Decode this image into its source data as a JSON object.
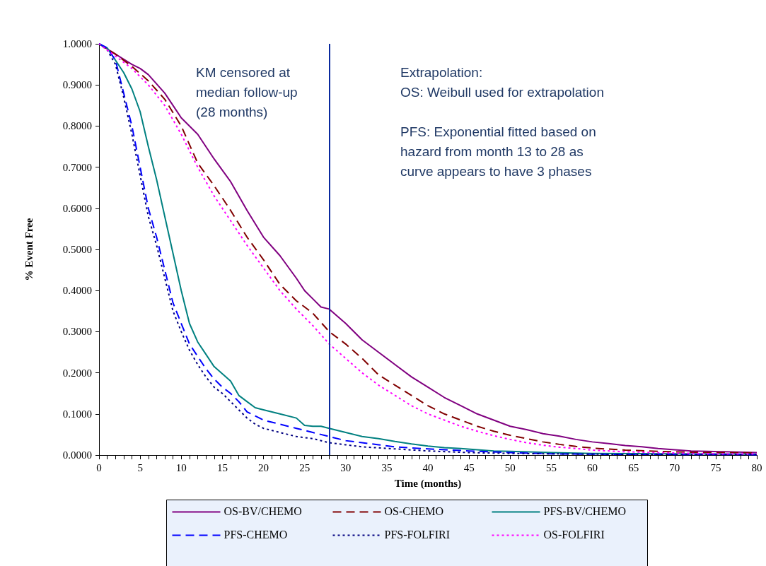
{
  "chart_data": {
    "type": "line",
    "xlabel": "Time (months)",
    "ylabel": "% Event Free",
    "xlim": [
      0,
      80
    ],
    "ylim": [
      0,
      1
    ],
    "xticks": [
      0,
      {
        "value": 1,
        "label": null
      },
      {
        "value": 2,
        "label": null
      },
      {
        "value": 3,
        "label": null
      },
      {
        "value": 4,
        "label": null
      },
      5,
      {
        "value": 6,
        "label": null
      },
      {
        "value": 7,
        "label": null
      },
      {
        "value": 8,
        "label": null
      },
      {
        "value": 9,
        "label": null
      },
      10,
      {
        "value": 11,
        "label": null
      },
      {
        "value": 12,
        "label": null
      },
      {
        "value": 13,
        "label": null
      },
      {
        "value": 14,
        "label": null
      },
      15,
      {
        "value": 16,
        "label": null
      },
      {
        "value": 17,
        "label": null
      },
      {
        "value": 18,
        "label": null
      },
      {
        "value": 19,
        "label": null
      },
      20,
      {
        "value": 21,
        "label": null
      },
      {
        "value": 22,
        "label": null
      },
      {
        "value": 23,
        "label": null
      },
      {
        "value": 24,
        "label": null
      },
      25,
      {
        "value": 26,
        "label": null
      },
      {
        "value": 27,
        "label": null
      },
      {
        "value": 28,
        "label": null
      },
      {
        "value": 29,
        "label": null
      },
      30,
      {
        "value": 31,
        "label": null
      },
      {
        "value": 32,
        "label": null
      },
      {
        "value": 33,
        "label": null
      },
      {
        "value": 34,
        "label": null
      },
      35,
      {
        "value": 36,
        "label": null
      },
      {
        "value": 37,
        "label": null
      },
      {
        "value": 38,
        "label": null
      },
      {
        "value": 39,
        "label": null
      },
      40,
      {
        "value": 41,
        "label": null
      },
      {
        "value": 42,
        "label": null
      },
      {
        "value": 43,
        "label": null
      },
      {
        "value": 44,
        "label": null
      },
      45,
      {
        "value": 46,
        "label": null
      },
      {
        "value": 47,
        "label": null
      },
      {
        "value": 48,
        "label": null
      },
      {
        "value": 49,
        "label": null
      },
      50,
      {
        "value": 51,
        "label": null
      },
      {
        "value": 52,
        "label": null
      },
      {
        "value": 53,
        "label": null
      },
      {
        "value": 54,
        "label": null
      },
      55,
      {
        "value": 56,
        "label": null
      },
      {
        "value": 57,
        "label": null
      },
      {
        "value": 58,
        "label": null
      },
      {
        "value": 59,
        "label": null
      },
      60,
      {
        "value": 61,
        "label": null
      },
      {
        "value": 62,
        "label": null
      },
      {
        "value": 63,
        "label": null
      },
      {
        "value": 64,
        "label": null
      },
      65,
      {
        "value": 66,
        "label": null
      },
      {
        "value": 67,
        "label": null
      },
      {
        "value": 68,
        "label": null
      },
      {
        "value": 69,
        "label": null
      },
      70,
      {
        "value": 71,
        "label": null
      },
      {
        "value": 72,
        "label": null
      },
      {
        "value": 73,
        "label": null
      },
      {
        "value": 74,
        "label": null
      },
      75,
      {
        "value": 76,
        "label": null
      },
      {
        "value": 77,
        "label": null
      },
      {
        "value": 78,
        "label": null
      },
      {
        "value": 79,
        "label": null
      },
      80
    ],
    "yticks": [
      {
        "value": 0,
        "label": "0.0000"
      },
      {
        "value": 0.1,
        "label": "0.1000"
      },
      {
        "value": 0.2,
        "label": "0.2000"
      },
      {
        "value": 0.3,
        "label": "0.3000"
      },
      {
        "value": 0.4,
        "label": "0.4000"
      },
      {
        "value": 0.5,
        "label": "0.5000"
      },
      {
        "value": 0.6,
        "label": "0.6000"
      },
      {
        "value": 0.7,
        "label": "0.7000"
      },
      {
        "value": 0.8,
        "label": "0.8000"
      },
      {
        "value": 0.9,
        "label": "0.9000"
      },
      {
        "value": 1,
        "label": "1.0000"
      }
    ],
    "grid": false,
    "legend": "bottom",
    "marker": "none",
    "series": [
      {
        "name": "OS-BV/CHEMO",
        "color": "#800080",
        "line_style": "solid",
        "x": [
          0,
          2,
          4,
          5,
          6,
          8,
          10,
          12,
          14,
          16,
          18,
          20,
          22,
          24,
          25,
          26,
          27,
          28,
          30,
          32,
          34,
          36,
          38,
          40,
          42,
          44,
          46,
          48,
          50,
          52,
          54,
          56,
          58,
          60,
          62,
          64,
          66,
          68,
          70,
          72,
          74,
          76,
          80
        ],
        "values": [
          1,
          0.975,
          0.95,
          0.94,
          0.925,
          0.88,
          0.82,
          0.78,
          0.72,
          0.665,
          0.595,
          0.53,
          0.485,
          0.43,
          0.4,
          0.38,
          0.36,
          0.355,
          0.32,
          0.28,
          0.25,
          0.22,
          0.19,
          0.165,
          0.14,
          0.12,
          0.1,
          0.085,
          0.07,
          0.062,
          0.052,
          0.046,
          0.038,
          0.032,
          0.028,
          0.023,
          0.02,
          0.016,
          0.013,
          0.01,
          0.009,
          0.008,
          0.006
        ]
      },
      {
        "name": "OS-CHEMO",
        "color": "#800000",
        "line_style": "dashed",
        "x": [
          0,
          2,
          4,
          6,
          8,
          10,
          12,
          14,
          16,
          18,
          20,
          22,
          24,
          26,
          28,
          30,
          32,
          34,
          36,
          38,
          40,
          42,
          44,
          46,
          48,
          50,
          52,
          54,
          56,
          58,
          60,
          64,
          68,
          72,
          76,
          80
        ],
        "values": [
          1,
          0.975,
          0.945,
          0.91,
          0.865,
          0.8,
          0.71,
          0.655,
          0.595,
          0.53,
          0.475,
          0.415,
          0.375,
          0.345,
          0.3,
          0.27,
          0.235,
          0.195,
          0.17,
          0.145,
          0.12,
          0.1,
          0.085,
          0.07,
          0.058,
          0.048,
          0.04,
          0.032,
          0.026,
          0.021,
          0.017,
          0.012,
          0.009,
          0.007,
          0.006,
          0.005
        ]
      },
      {
        "name": "PFS-BV/CHEMO",
        "color": "#008080",
        "line_style": "solid",
        "x": [
          0,
          1,
          2,
          3,
          4,
          5,
          6,
          7,
          8,
          9,
          10,
          11,
          12,
          13,
          14,
          16,
          17,
          18,
          19,
          20,
          22,
          24,
          25,
          26,
          27,
          28,
          30,
          32,
          34,
          36,
          38,
          40,
          42,
          44,
          46,
          48,
          50,
          55,
          60,
          70,
          80
        ],
        "values": [
          1,
          0.99,
          0.96,
          0.93,
          0.89,
          0.835,
          0.75,
          0.67,
          0.58,
          0.49,
          0.4,
          0.32,
          0.275,
          0.245,
          0.215,
          0.18,
          0.145,
          0.13,
          0.115,
          0.11,
          0.1,
          0.09,
          0.072,
          0.07,
          0.07,
          0.065,
          0.055,
          0.045,
          0.04,
          0.033,
          0.027,
          0.022,
          0.018,
          0.016,
          0.013,
          0.01,
          0.009,
          0.006,
          0.004,
          0.003,
          0.002
        ]
      },
      {
        "name": "PFS-CHEMO",
        "color": "#0000ff",
        "line_style": "dashed",
        "x": [
          0,
          1,
          2,
          3,
          4,
          5,
          6,
          7,
          8,
          9,
          10,
          11,
          12,
          13,
          14,
          15,
          16,
          17,
          18,
          19,
          20,
          22,
          24,
          26,
          28,
          30,
          32,
          34,
          36,
          40,
          45,
          50,
          55,
          60,
          80
        ],
        "values": [
          1,
          0.99,
          0.96,
          0.88,
          0.8,
          0.7,
          0.6,
          0.53,
          0.45,
          0.37,
          0.32,
          0.27,
          0.24,
          0.21,
          0.185,
          0.165,
          0.15,
          0.13,
          0.105,
          0.095,
          0.085,
          0.075,
          0.065,
          0.055,
          0.045,
          0.035,
          0.03,
          0.025,
          0.02,
          0.015,
          0.01,
          0.006,
          0.003,
          0.002,
          0.001
        ]
      },
      {
        "name": "PFS-FOLFIRI",
        "color": "#000080",
        "line_style": "dotted",
        "x": [
          0,
          1,
          2,
          3,
          4,
          5,
          6,
          7,
          8,
          9,
          10,
          11,
          12,
          13,
          14,
          15,
          16,
          17,
          18,
          19,
          20,
          22,
          24,
          26,
          28,
          30,
          32,
          36,
          40,
          45,
          50,
          60,
          80
        ],
        "values": [
          1,
          0.985,
          0.95,
          0.87,
          0.78,
          0.68,
          0.58,
          0.51,
          0.43,
          0.35,
          0.3,
          0.255,
          0.22,
          0.19,
          0.165,
          0.15,
          0.13,
          0.11,
          0.09,
          0.075,
          0.065,
          0.055,
          0.045,
          0.04,
          0.03,
          0.025,
          0.02,
          0.015,
          0.01,
          0.006,
          0.004,
          0.002,
          0.001
        ]
      },
      {
        "name": "OS-FOLFIRI",
        "color": "#ff00ff",
        "line_style": "dotted",
        "x": [
          0,
          2,
          4,
          6,
          8,
          10,
          12,
          14,
          16,
          18,
          20,
          22,
          24,
          26,
          28,
          30,
          32,
          34,
          36,
          38,
          40,
          42,
          44,
          46,
          48,
          50,
          52,
          54,
          56,
          58,
          60,
          64,
          68,
          72,
          76,
          80
        ],
        "values": [
          1,
          0.97,
          0.94,
          0.9,
          0.85,
          0.78,
          0.7,
          0.63,
          0.57,
          0.51,
          0.455,
          0.4,
          0.355,
          0.315,
          0.27,
          0.235,
          0.2,
          0.17,
          0.145,
          0.12,
          0.1,
          0.085,
          0.07,
          0.058,
          0.047,
          0.038,
          0.03,
          0.024,
          0.019,
          0.016,
          0.012,
          0.008,
          0.006,
          0.004,
          0.003,
          0.003
        ]
      }
    ],
    "ref_lines": [
      {
        "axis": "x",
        "value": 28,
        "label": "KM censored at median follow-up (28 months)",
        "color": "#0a2a9e"
      }
    ],
    "annotations": [
      "Extrapolation:",
      "OS: Weibull used for extrapolation",
      "PFS: Exponential fitted based on hazard from month 13 to 28 as curve appears to have 3 phases"
    ]
  }
}
